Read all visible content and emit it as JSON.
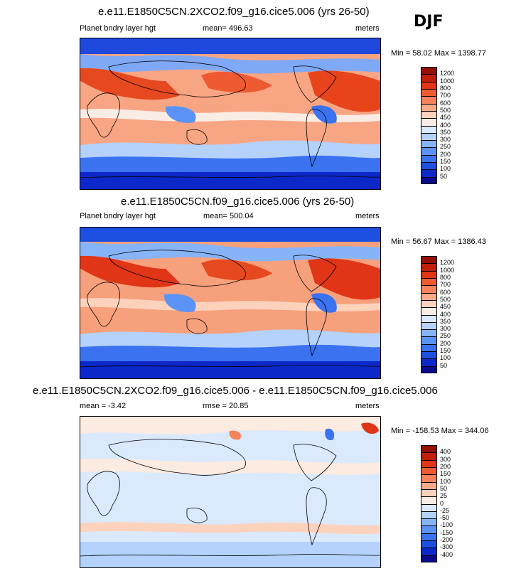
{
  "season_label": "DJF",
  "colors": {
    "abs": [
      "#0a0a8c",
      "#0d28c8",
      "#1d4fe0",
      "#3a72f0",
      "#5a93f5",
      "#87b4f8",
      "#b4d2fb",
      "#dbe9fc",
      "#f9ece4",
      "#fcd2bd",
      "#f9aa87",
      "#f6835b",
      "#ef5a33",
      "#e03516",
      "#c01e0a",
      "#951005"
    ],
    "diff": [
      "#0a0a8c",
      "#0d28c8",
      "#1d4fe0",
      "#3a72f0",
      "#5a93f5",
      "#87b4f8",
      "#b4d2fb",
      "#dbe9fc",
      "#fcebe0",
      "#fcd2bd",
      "#f9aa87",
      "#f6835b",
      "#ef5a33",
      "#e03516",
      "#c01e0a",
      "#951005"
    ]
  },
  "chart_data": [
    {
      "type": "heatmap",
      "title": "e.e11.E1850C5CN.2XCO2.f09_g16.cice5.006 (yrs 26-50)",
      "variable": "Planet bndry layer hgt",
      "mean_text": "mean= 496.63",
      "units": "meters",
      "minmax_text": "Min =  58.02 Max = 1398.77",
      "min": 58.02,
      "max": 1398.77,
      "mean": 496.63,
      "levels": [
        "1200",
        "1000",
        "800",
        "700",
        "600",
        "500",
        "450",
        "400",
        "350",
        "300",
        "250",
        "200",
        "150",
        "100",
        "50"
      ]
    },
    {
      "type": "heatmap",
      "title": "e.e11.E1850C5CN.f09_g16.cice5.006 (yrs 26-50)",
      "variable": "Planet bndry layer hgt",
      "mean_text": "mean= 500.04",
      "units": "meters",
      "minmax_text": "Min =  56.67 Max = 1386.43",
      "min": 56.67,
      "max": 1386.43,
      "mean": 500.04,
      "levels": [
        "1200",
        "1000",
        "800",
        "700",
        "600",
        "500",
        "450",
        "400",
        "350",
        "300",
        "250",
        "200",
        "150",
        "100",
        "50"
      ]
    },
    {
      "type": "heatmap",
      "title": "e.e11.E1850C5CN.2XCO2.f09_g16.cice5.006 - e.e11.E1850C5CN.f09_g16.cice5.006",
      "mean_text": "mean =  -3.42",
      "rmse_text": "rmse =  20.85",
      "units": "meters",
      "minmax_text": "Min = -158.53 Max = 344.06",
      "min": -158.53,
      "max": 344.06,
      "mean": -3.42,
      "rmse": 20.85,
      "levels": [
        "400",
        "300",
        "200",
        "150",
        "100",
        "50",
        "25",
        "0",
        "-25",
        "-50",
        "-100",
        "-150",
        "-200",
        "-300",
        "-400"
      ]
    }
  ]
}
